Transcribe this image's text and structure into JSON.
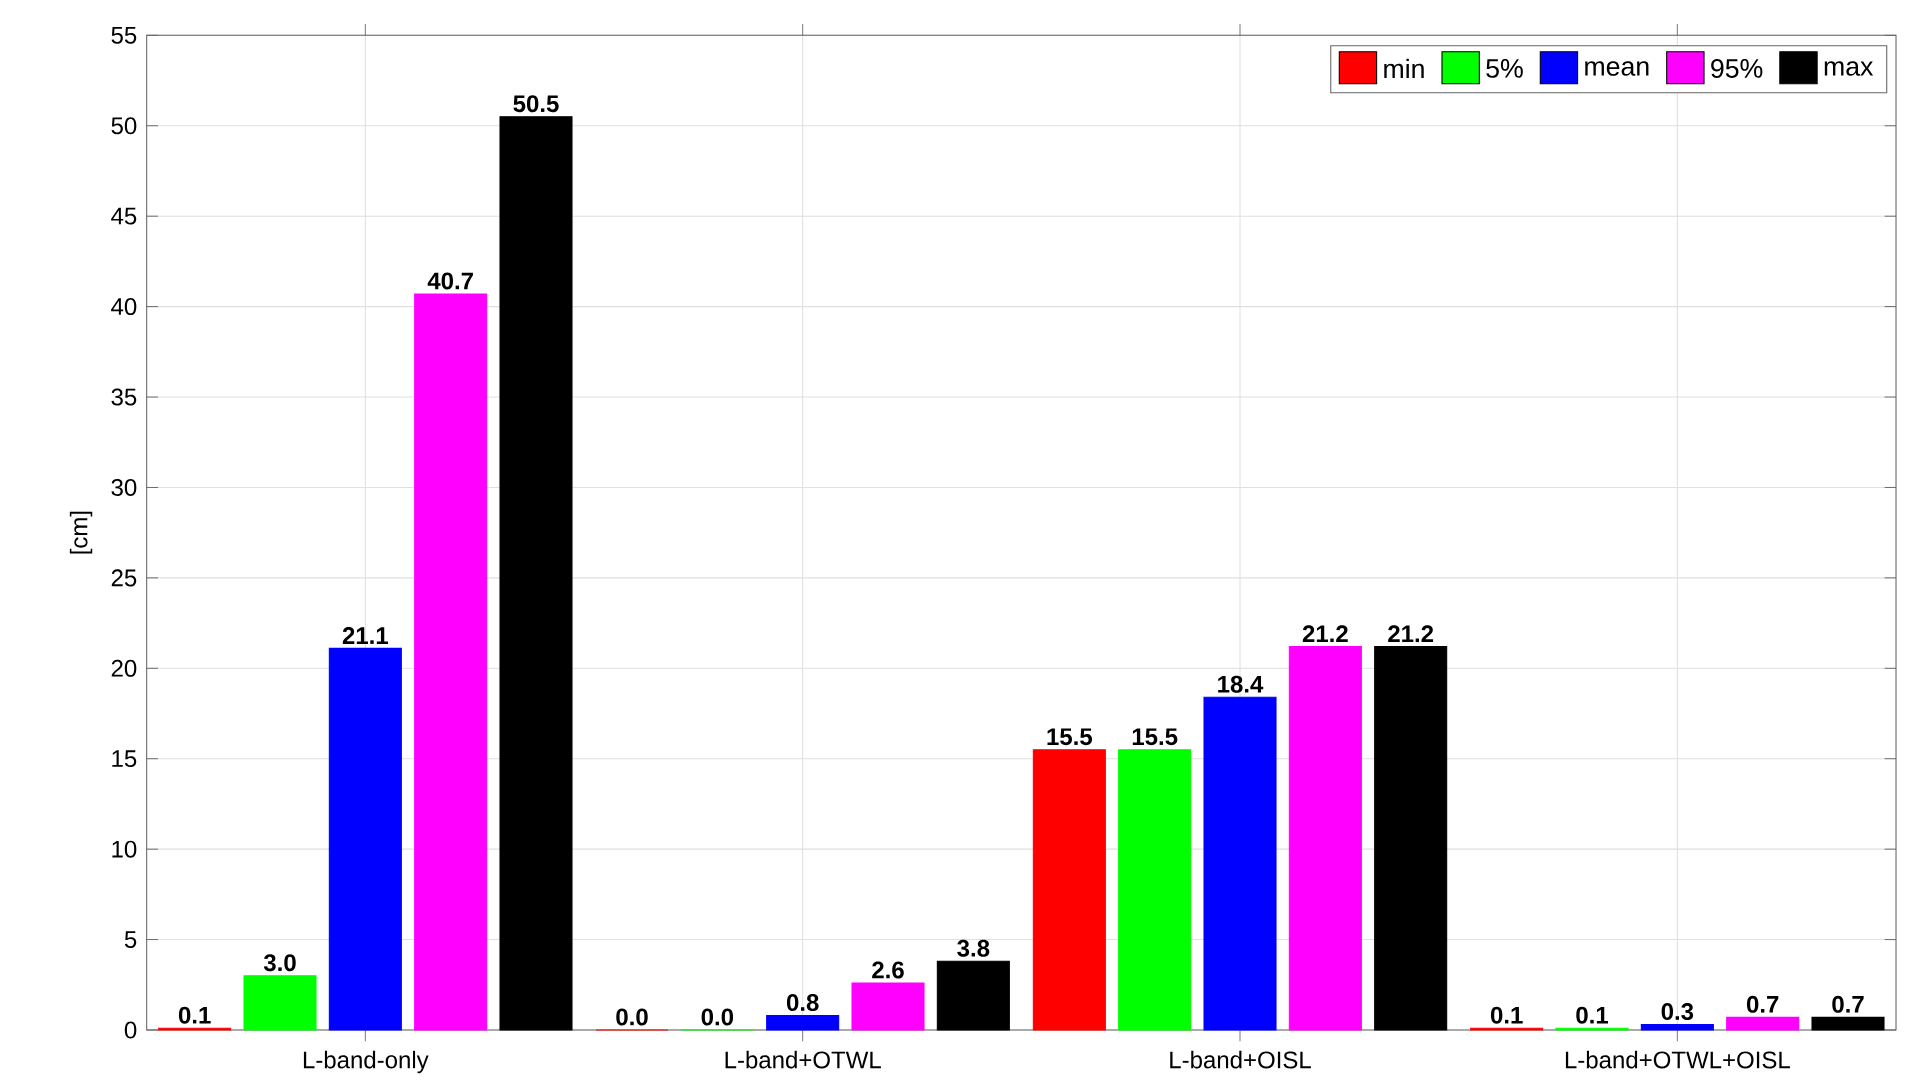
{
  "chart_data": {
    "type": "bar",
    "ylabel": "[cm]",
    "categories": [
      "L-band-only",
      "L-band+OTWL",
      "L-band+OISL",
      "L-band+OTWL+OISL"
    ],
    "series": [
      {
        "name": "min",
        "color": "#ff0000",
        "values": [
          0.1,
          0.0,
          15.5,
          0.1
        ],
        "value_labels": [
          "0.1",
          "0.0",
          "15.5",
          "0.1"
        ]
      },
      {
        "name": "5%",
        "color": "#00ff00",
        "values": [
          3.0,
          0.0,
          15.5,
          0.1
        ],
        "value_labels": [
          "3.0",
          "0.0",
          "15.5",
          "0.1"
        ]
      },
      {
        "name": "mean",
        "color": "#0000ff",
        "values": [
          21.1,
          0.8,
          18.4,
          0.3
        ],
        "value_labels": [
          "21.1",
          "0.8",
          "18.4",
          "0.3"
        ]
      },
      {
        "name": "95%",
        "color": "#ff00ff",
        "values": [
          40.7,
          2.6,
          21.2,
          0.7
        ],
        "value_labels": [
          "40.7",
          "2.6",
          "21.2",
          "0.7"
        ]
      },
      {
        "name": "max",
        "color": "#000000",
        "values": [
          50.5,
          3.8,
          21.2,
          0.7
        ],
        "value_labels": [
          "50.5",
          "3.8",
          "21.2",
          "0.7"
        ]
      }
    ],
    "ylim": [
      0,
      55
    ],
    "yticks": [
      0,
      5,
      10,
      15,
      20,
      25,
      30,
      35,
      40,
      45,
      50,
      55
    ],
    "grid": true,
    "legend": "top right"
  }
}
